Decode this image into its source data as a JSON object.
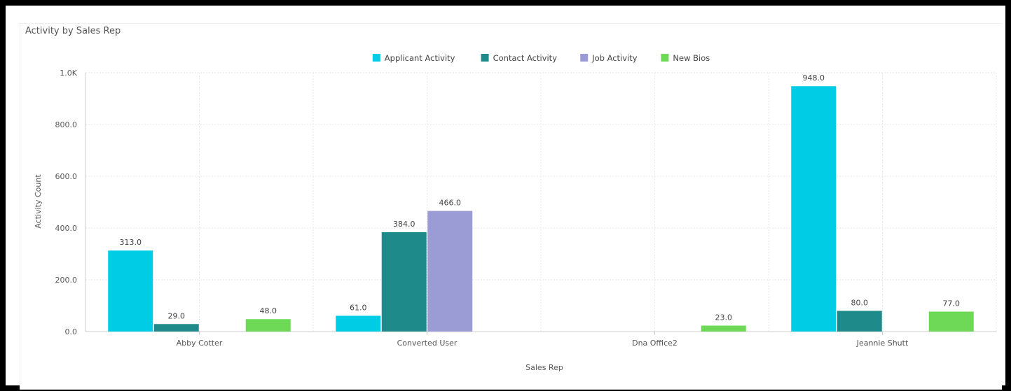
{
  "chart_data": {
    "type": "bar",
    "title": "Activity by Sales Rep",
    "xlabel": "Sales Rep",
    "ylabel": "Activity Count",
    "categories": [
      "Abby Cotter",
      "Converted User",
      "Dna Office2",
      "Jeannie Shutt"
    ],
    "yticks": [
      "0.0",
      "200.0",
      "400.0",
      "600.0",
      "800.0",
      "1.0K"
    ],
    "ylim": [
      0,
      1000
    ],
    "grid": true,
    "legend_position": "top-center",
    "series": [
      {
        "name": "Applicant Activity",
        "color": "#00cce6",
        "values": [
          313,
          61,
          null,
          948
        ],
        "labels": [
          "313.0",
          "61.0",
          "",
          "948.0"
        ]
      },
      {
        "name": "Contact Activity",
        "color": "#1f8a8a",
        "values": [
          29,
          384,
          null,
          80
        ],
        "labels": [
          "29.0",
          "384.0",
          "",
          "80.0"
        ]
      },
      {
        "name": "Job Activity",
        "color": "#9b9bd6",
        "values": [
          null,
          466,
          null,
          null
        ],
        "labels": [
          "",
          "466.0",
          "",
          ""
        ]
      },
      {
        "name": "New Bios",
        "color": "#6dd956",
        "values": [
          48,
          null,
          23,
          77
        ],
        "labels": [
          "48.0",
          "",
          "23.0",
          "77.0"
        ]
      }
    ]
  }
}
